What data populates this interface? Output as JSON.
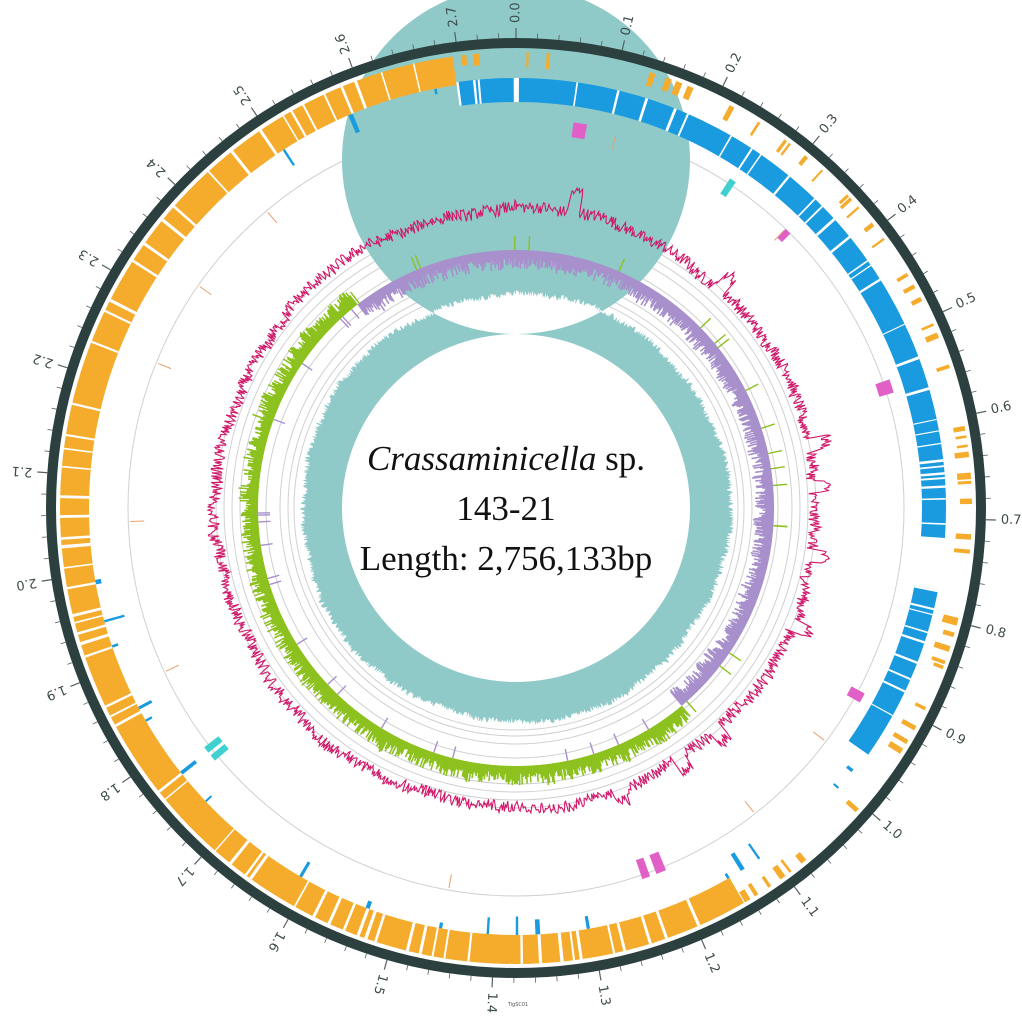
{
  "title": {
    "genus": "Crassaminicella",
    "species_suffix": " sp.",
    "strain": "143-21",
    "length_label": "Length: 2,756,133bp"
  },
  "genome": {
    "length_bp": 2756133,
    "tick_labels": [
      "0.0",
      "0.1",
      "0.2",
      "0.3",
      "0.4",
      "0.5",
      "0.6",
      "0.7",
      "0.8",
      "0.9",
      "1.0",
      "1.1",
      "1.2",
      "1.3",
      "1.4",
      "1.5",
      "1.6",
      "1.7",
      "1.8",
      "1.9",
      "2.0",
      "2.1",
      "2.2",
      "2.3",
      "2.4",
      "2.5",
      "2.6",
      "2.7"
    ]
  },
  "footer_mark": "TigSC01",
  "colors": {
    "backbone": "#2c4040",
    "forward_strand": "#f5ab2b",
    "reverse_strand": "#1a9be0",
    "rrna": "#e060c8",
    "trna": "#e8a070",
    "trna_alt": "#40d0d0",
    "gc_content": "#d0186a",
    "gc_skew_pos": "#8cc11f",
    "gc_skew_neg": "#a890cc",
    "depth": "#90cac8"
  }
}
